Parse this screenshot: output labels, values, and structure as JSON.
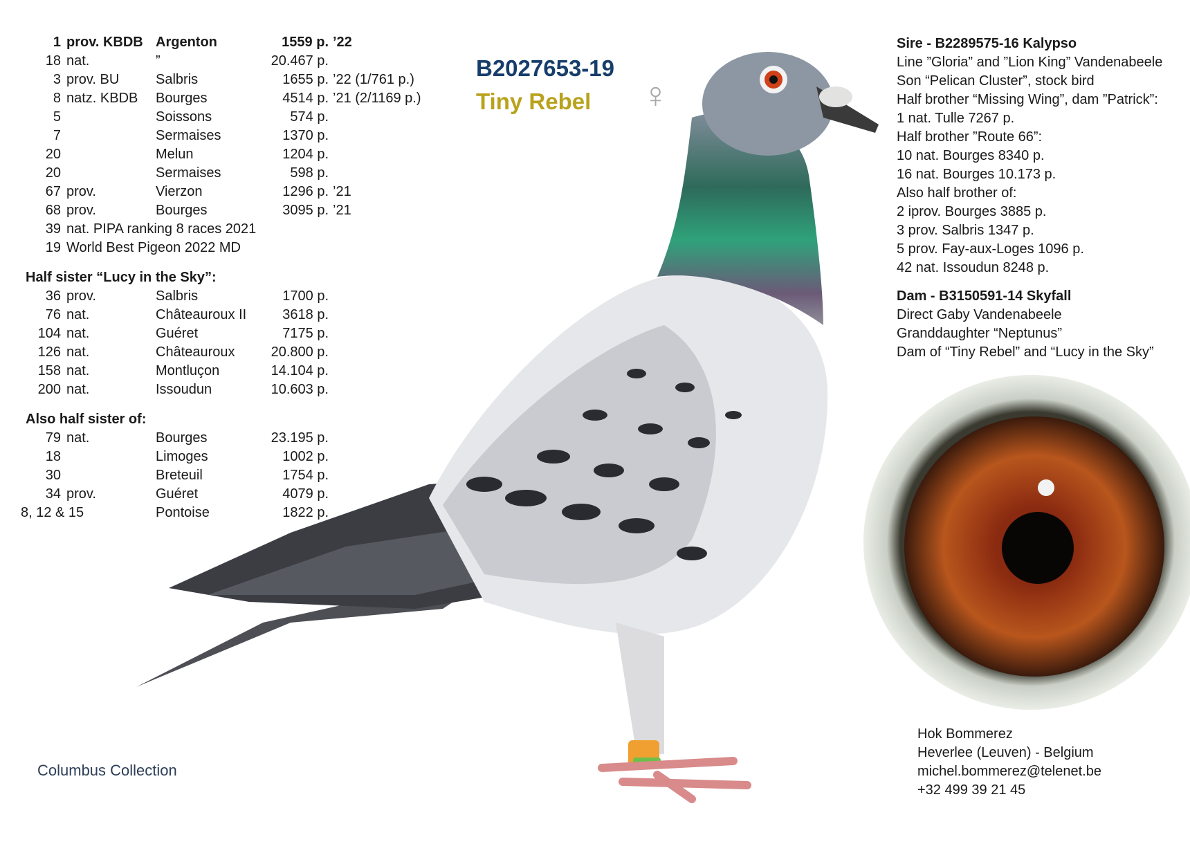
{
  "header": {
    "ring_number": "B2027653-19",
    "name": "Tiny Rebel",
    "sex_symbol": "♀"
  },
  "results": [
    {
      "rank": "1",
      "class": "prov. KBDB",
      "location": "Argenton",
      "points": "1559 p.",
      "suffix": "’22",
      "bold": true
    },
    {
      "rank": "18",
      "class": "nat.",
      "location": "”",
      "points": "20.467 p.",
      "suffix": ""
    },
    {
      "rank": "3",
      "class": "prov. BU",
      "location": "Salbris",
      "points": "1655 p.",
      "suffix": "’22 (1/761 p.)"
    },
    {
      "rank": "8",
      "class": "natz. KBDB",
      "location": "Bourges",
      "points": "4514 p.",
      "suffix": "’21 (2/1169 p.)"
    },
    {
      "rank": "5",
      "class": "",
      "location": "Soissons",
      "points": "574 p.",
      "suffix": ""
    },
    {
      "rank": "7",
      "class": "",
      "location": "Sermaises",
      "points": "1370 p.",
      "suffix": ""
    },
    {
      "rank": "20",
      "class": "",
      "location": "Melun",
      "points": "1204 p.",
      "suffix": ""
    },
    {
      "rank": "20",
      "class": "",
      "location": "Sermaises",
      "points": "598 p.",
      "suffix": ""
    },
    {
      "rank": "67",
      "class": "prov.",
      "location": "Vierzon",
      "points": "1296 p.",
      "suffix": "’21"
    },
    {
      "rank": "68",
      "class": "prov.",
      "location": "Bourges",
      "points": "3095 p.",
      "suffix": "’21"
    },
    {
      "rank": "39",
      "class": "nat. PIPA ranking 8 races 2021",
      "location": "",
      "points": "",
      "suffix": ""
    },
    {
      "rank": "19",
      "class": "World Best Pigeon 2022 MD",
      "location": "",
      "points": "",
      "suffix": ""
    }
  ],
  "half_sister": {
    "heading": "Half sister “Lucy in the Sky”:",
    "rows": [
      {
        "rank": "36",
        "class": "prov.",
        "location": "Salbris",
        "points": "1700 p."
      },
      {
        "rank": "76",
        "class": "nat.",
        "location": "Châteauroux II",
        "points": "3618 p."
      },
      {
        "rank": "104",
        "class": "nat.",
        "location": "Guéret",
        "points": "7175 p."
      },
      {
        "rank": "126",
        "class": "nat.",
        "location": "Châteauroux",
        "points": "20.800 p."
      },
      {
        "rank": "158",
        "class": "nat.",
        "location": "Montluçon",
        "points": "14.104 p."
      },
      {
        "rank": "200",
        "class": "nat.",
        "location": "Issoudun",
        "points": "10.603 p."
      }
    ]
  },
  "also_half_sister": {
    "heading": "Also half sister of:",
    "rows": [
      {
        "rank": "79",
        "class": "nat.",
        "location": "Bourges",
        "points": "23.195 p."
      },
      {
        "rank": "18",
        "class": "",
        "location": "Limoges",
        "points": "1002 p."
      },
      {
        "rank": "30",
        "class": "",
        "location": "Breteuil",
        "points": "1754 p."
      },
      {
        "rank": "34",
        "class": "prov.",
        "location": "Guéret",
        "points": "4079 p."
      },
      {
        "rank": "8, 12 & 15",
        "class": "",
        "location": "Pontoise",
        "points": "1822 p."
      }
    ]
  },
  "sire": {
    "heading": "Sire - B2289575-16 Kalypso",
    "lines": [
      "Line ”Gloria” and ”Lion King” Vandenabeele",
      "Son “Pelican Cluster”, stock bird",
      "Half brother “Missing Wing”, dam ”Patrick”:",
      "1 nat. Tulle 7267 p.",
      "Half brother ”Route 66”:",
      "10 nat. Bourges 8340 p.",
      "16 nat. Bourges 10.173 p.",
      "Also half brother of:",
      "2 iprov. Bourges 3885 p.",
      "3 prov. Salbris 1347 p.",
      "5 prov. Fay-aux-Loges 1096 p.",
      "42 nat. Issoudun 8248 p."
    ]
  },
  "dam": {
    "heading": "Dam -  B3150591-14 Skyfall",
    "lines": [
      "Direct Gaby Vandenabeele",
      "Granddaughter “Neptunus”",
      "Dam of “Tiny Rebel” and “Lucy in the Sky”"
    ]
  },
  "contact": {
    "loft": "Hok Bommerez",
    "location": "Heverlee (Leuven) - Belgium",
    "email": "michel.bommerez@telenet.be",
    "phone": "+32 499 39 21 45"
  },
  "brand": "Columbus Collection",
  "colors": {
    "title": "#173e6b",
    "name": "#b9a21c",
    "sex_symbol": "#a9a9a9",
    "brand": "#2d3e58"
  }
}
